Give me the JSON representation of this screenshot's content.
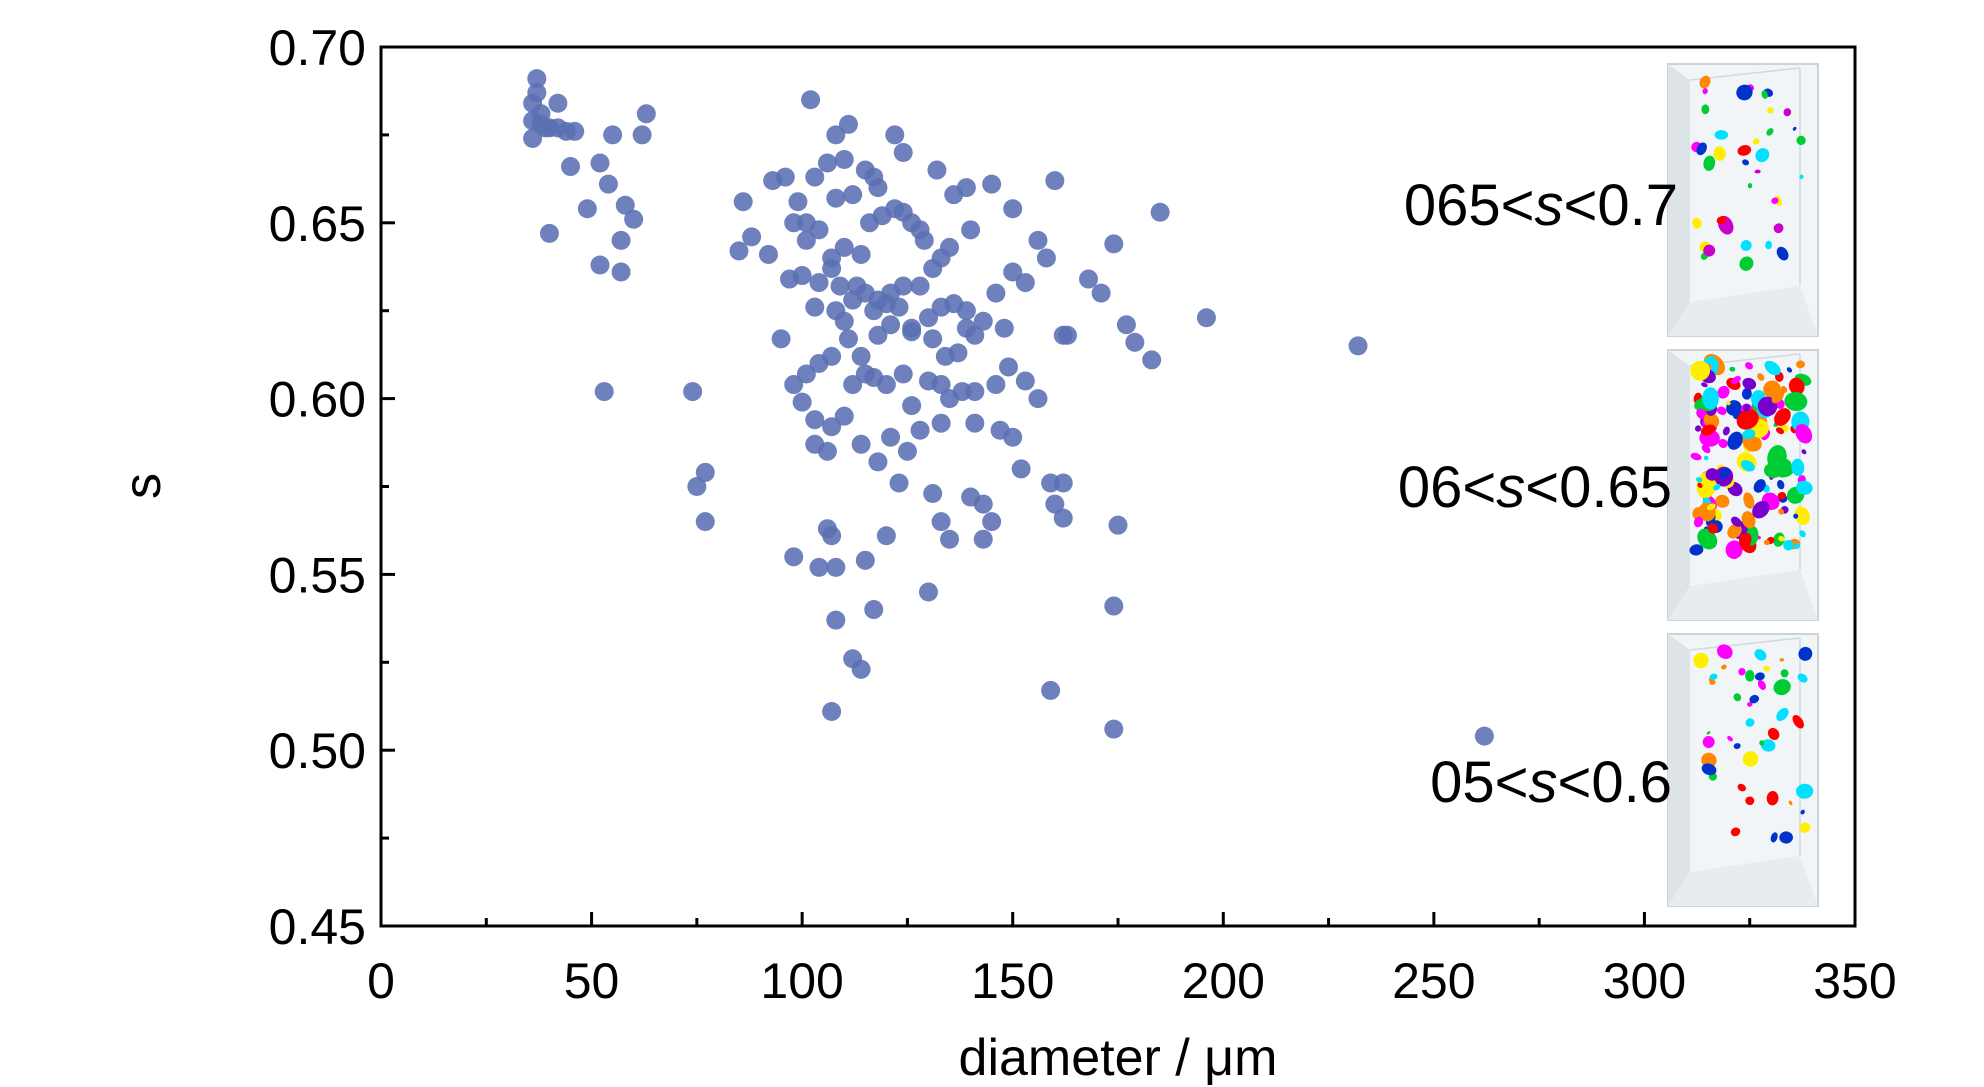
{
  "chart_data": {
    "type": "scatter",
    "xlabel": "diameter / μm",
    "ylabel": "s",
    "xlim": [
      0,
      350
    ],
    "ylim": [
      0.45,
      0.7
    ],
    "xticks": [
      "0",
      "50",
      "100",
      "150",
      "200",
      "250",
      "300",
      "350"
    ],
    "yticks": [
      "0.45",
      "0.50",
      "0.55",
      "0.60",
      "0.65",
      "0.70"
    ],
    "grid": false,
    "marker_color": "#5b6fb3",
    "annotations": [
      {
        "pre": "065<",
        "s": "s",
        "post": "<0.7"
      },
      {
        "pre": "06<",
        "s": "s",
        "post": "<0.65"
      },
      {
        "pre": "05<",
        "s": "s",
        "post": "<0.6"
      }
    ],
    "series": [
      {
        "points": [
          [
            37,
            0.691
          ],
          [
            36,
            0.684
          ],
          [
            37,
            0.687
          ],
          [
            38,
            0.681
          ],
          [
            36,
            0.679
          ],
          [
            39,
            0.677
          ],
          [
            40,
            0.677
          ],
          [
            42,
            0.677
          ],
          [
            42,
            0.684
          ],
          [
            36,
            0.674
          ],
          [
            38,
            0.678
          ],
          [
            44,
            0.676
          ],
          [
            46,
            0.676
          ],
          [
            45,
            0.666
          ],
          [
            52,
            0.667
          ],
          [
            55,
            0.675
          ],
          [
            63,
            0.681
          ],
          [
            62,
            0.675
          ],
          [
            40,
            0.647
          ],
          [
            54,
            0.661
          ],
          [
            49,
            0.654
          ],
          [
            58,
            0.655
          ],
          [
            60,
            0.651
          ],
          [
            57,
            0.645
          ],
          [
            52,
            0.638
          ],
          [
            57,
            0.636
          ],
          [
            53,
            0.602
          ],
          [
            102,
            0.685
          ],
          [
            108,
            0.675
          ],
          [
            111,
            0.678
          ],
          [
            122,
            0.675
          ],
          [
            124,
            0.67
          ],
          [
            106,
            0.667
          ],
          [
            110,
            0.668
          ],
          [
            103,
            0.663
          ],
          [
            115,
            0.665
          ],
          [
            117,
            0.663
          ],
          [
            118,
            0.66
          ],
          [
            112,
            0.658
          ],
          [
            108,
            0.657
          ],
          [
            99,
            0.656
          ],
          [
            96,
            0.663
          ],
          [
            93,
            0.662
          ],
          [
            86,
            0.656
          ],
          [
            88,
            0.646
          ],
          [
            85,
            0.642
          ],
          [
            92,
            0.641
          ],
          [
            101,
            0.65
          ],
          [
            104,
            0.648
          ],
          [
            98,
            0.65
          ],
          [
            101,
            0.645
          ],
          [
            107,
            0.64
          ],
          [
            110,
            0.643
          ],
          [
            114,
            0.641
          ],
          [
            116,
            0.65
          ],
          [
            119,
            0.652
          ],
          [
            122,
            0.654
          ],
          [
            124,
            0.653
          ],
          [
            126,
            0.65
          ],
          [
            128,
            0.648
          ],
          [
            129,
            0.645
          ],
          [
            132,
            0.665
          ],
          [
            136,
            0.658
          ],
          [
            139,
            0.66
          ],
          [
            140,
            0.648
          ],
          [
            135,
            0.643
          ],
          [
            133,
            0.64
          ],
          [
            131,
            0.637
          ],
          [
            128,
            0.632
          ],
          [
            124,
            0.632
          ],
          [
            121,
            0.63
          ],
          [
            118,
            0.628
          ],
          [
            115,
            0.63
          ],
          [
            113,
            0.632
          ],
          [
            109,
            0.632
          ],
          [
            107,
            0.637
          ],
          [
            104,
            0.633
          ],
          [
            100,
            0.635
          ],
          [
            97,
            0.634
          ],
          [
            103,
            0.626
          ],
          [
            108,
            0.625
          ],
          [
            110,
            0.622
          ],
          [
            112,
            0.628
          ],
          [
            117,
            0.625
          ],
          [
            120,
            0.627
          ],
          [
            123,
            0.626
          ],
          [
            126,
            0.62
          ],
          [
            130,
            0.623
          ],
          [
            133,
            0.626
          ],
          [
            136,
            0.627
          ],
          [
            139,
            0.62
          ],
          [
            141,
            0.618
          ],
          [
            137,
            0.613
          ],
          [
            134,
            0.612
          ],
          [
            131,
            0.617
          ],
          [
            126,
            0.619
          ],
          [
            121,
            0.621
          ],
          [
            118,
            0.618
          ],
          [
            114,
            0.612
          ],
          [
            111,
            0.617
          ],
          [
            107,
            0.612
          ],
          [
            104,
            0.61
          ],
          [
            101,
            0.607
          ],
          [
            98,
            0.604
          ],
          [
            95,
            0.617
          ],
          [
            100,
            0.599
          ],
          [
            103,
            0.594
          ],
          [
            107,
            0.592
          ],
          [
            110,
            0.595
          ],
          [
            112,
            0.604
          ],
          [
            115,
            0.607
          ],
          [
            117,
            0.606
          ],
          [
            120,
            0.604
          ],
          [
            124,
            0.607
          ],
          [
            126,
            0.598
          ],
          [
            130,
            0.605
          ],
          [
            133,
            0.604
          ],
          [
            135,
            0.6
          ],
          [
            138,
            0.602
          ],
          [
            141,
            0.602
          ],
          [
            146,
            0.604
          ],
          [
            149,
            0.609
          ],
          [
            153,
            0.605
          ],
          [
            156,
            0.6
          ],
          [
            150,
            0.589
          ],
          [
            147,
            0.591
          ],
          [
            141,
            0.593
          ],
          [
            133,
            0.593
          ],
          [
            128,
            0.591
          ],
          [
            125,
            0.585
          ],
          [
            121,
            0.589
          ],
          [
            118,
            0.582
          ],
          [
            114,
            0.587
          ],
          [
            106,
            0.585
          ],
          [
            103,
            0.587
          ],
          [
            148,
            0.62
          ],
          [
            143,
            0.622
          ],
          [
            139,
            0.625
          ],
          [
            146,
            0.63
          ],
          [
            150,
            0.636
          ],
          [
            153,
            0.633
          ],
          [
            156,
            0.645
          ],
          [
            160,
            0.662
          ],
          [
            158,
            0.64
          ],
          [
            168,
            0.634
          ],
          [
            171,
            0.63
          ],
          [
            174,
            0.644
          ],
          [
            185,
            0.653
          ],
          [
            163,
            0.618
          ],
          [
            162,
            0.618
          ],
          [
            177,
            0.621
          ],
          [
            179,
            0.616
          ],
          [
            183,
            0.611
          ],
          [
            196,
            0.623
          ],
          [
            232,
            0.615
          ],
          [
            145,
            0.661
          ],
          [
            150,
            0.654
          ],
          [
            74,
            0.602
          ],
          [
            77,
            0.579
          ],
          [
            75,
            0.575
          ],
          [
            77,
            0.565
          ],
          [
            98,
            0.555
          ],
          [
            106,
            0.563
          ],
          [
            107,
            0.561
          ],
          [
            104,
            0.552
          ],
          [
            108,
            0.552
          ],
          [
            115,
            0.554
          ],
          [
            120,
            0.561
          ],
          [
            123,
            0.576
          ],
          [
            131,
            0.573
          ],
          [
            133,
            0.565
          ],
          [
            135,
            0.56
          ],
          [
            140,
            0.572
          ],
          [
            143,
            0.57
          ],
          [
            145,
            0.565
          ],
          [
            143,
            0.56
          ],
          [
            152,
            0.58
          ],
          [
            159,
            0.576
          ],
          [
            160,
            0.57
          ],
          [
            162,
            0.576
          ],
          [
            162,
            0.566
          ],
          [
            175,
            0.564
          ],
          [
            174,
            0.541
          ],
          [
            130,
            0.545
          ],
          [
            117,
            0.54
          ],
          [
            108,
            0.537
          ],
          [
            112,
            0.526
          ],
          [
            114,
            0.523
          ],
          [
            107,
            0.511
          ],
          [
            159,
            0.517
          ],
          [
            174,
            0.506
          ],
          [
            262,
            0.504
          ]
        ]
      }
    ]
  },
  "insets": [
    {
      "name": "inset-high",
      "colors": [
        "#ff00ff",
        "#00e0ff",
        "#ffee00",
        "#00cc33",
        "#ff0000",
        "#0033cc",
        "#ff8800",
        "#cc00cc"
      ],
      "count": 38
    },
    {
      "name": "inset-mid",
      "colors": [
        "#ff0000",
        "#0033cc",
        "#ffee00",
        "#00cc33",
        "#ff00ff",
        "#00e0ff",
        "#ff8800",
        "#7700cc"
      ],
      "count": 150
    },
    {
      "name": "inset-low",
      "colors": [
        "#00e0ff",
        "#0033cc",
        "#ff0000",
        "#00cc33",
        "#ff00ff",
        "#ffee00",
        "#ff8800"
      ],
      "count": 45
    }
  ]
}
